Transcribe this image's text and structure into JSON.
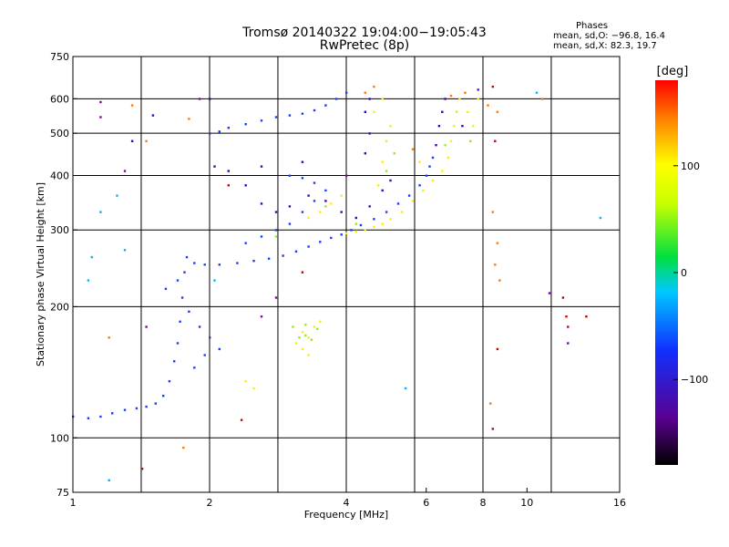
{
  "header": {
    "title": "Tromsø 20140322 19:04:00−19:05:43",
    "subtitle": "RwPretec (8p)"
  },
  "stats": {
    "heading": "Phases",
    "line_o": "mean, sd,O: −96.8, 16.4",
    "line_x": "mean, sd,X:  82.3, 19.7"
  },
  "colorbar": {
    "unit": "[deg]",
    "ticks": [
      "100",
      "0",
      "−100"
    ],
    "tick_values": [
      100,
      0,
      -100
    ],
    "range": [
      -180,
      180
    ]
  },
  "chart_data": {
    "type": "scatter",
    "xlabel": "Frequency [MHz]",
    "ylabel": "Stationary phase Virtual Height [km]",
    "xscale": "log",
    "yscale": "log",
    "xlim": [
      1,
      16
    ],
    "ylim": [
      75,
      750
    ],
    "x_ticks": [
      1,
      2,
      4,
      6,
      8,
      10,
      16
    ],
    "x_tick_labels": [
      "1",
      "2",
      "4",
      "6",
      "8",
      "10",
      "16"
    ],
    "x_grid": [
      1.414,
      2,
      2.828,
      4,
      5.657,
      8,
      11.31
    ],
    "y_ticks": [
      75,
      100,
      200,
      300,
      400,
      500,
      600,
      750
    ],
    "y_tick_labels": [
      "75",
      "100",
      "200",
      "300",
      "400",
      "500",
      "600",
      "750"
    ],
    "y_grid": [
      100,
      200,
      300,
      400,
      500,
      600
    ],
    "grid": true,
    "series": [
      {
        "color": "#1a3cff",
        "phase": -100,
        "points": [
          [
            1.0,
            112
          ],
          [
            1.08,
            111
          ],
          [
            1.15,
            112
          ],
          [
            1.22,
            114
          ],
          [
            1.3,
            116
          ],
          [
            1.38,
            117
          ],
          [
            1.45,
            118
          ],
          [
            1.52,
            120
          ],
          [
            1.58,
            125
          ],
          [
            1.63,
            135
          ],
          [
            1.67,
            150
          ],
          [
            1.7,
            165
          ],
          [
            1.72,
            185
          ],
          [
            1.74,
            210
          ],
          [
            1.76,
            240
          ],
          [
            1.78,
            260
          ],
          [
            1.85,
            252
          ],
          [
            1.95,
            250
          ],
          [
            2.1,
            250
          ],
          [
            2.3,
            252
          ],
          [
            2.5,
            255
          ],
          [
            2.7,
            258
          ],
          [
            2.9,
            262
          ],
          [
            3.1,
            268
          ],
          [
            3.3,
            275
          ],
          [
            3.5,
            282
          ],
          [
            3.7,
            288
          ],
          [
            3.9,
            293
          ],
          [
            4.1,
            300
          ],
          [
            4.3,
            308
          ],
          [
            4.6,
            318
          ],
          [
            4.9,
            330
          ],
          [
            5.2,
            345
          ],
          [
            5.5,
            360
          ],
          [
            5.8,
            380
          ],
          [
            6.0,
            400
          ],
          [
            6.1,
            420
          ],
          [
            6.2,
            440
          ],
          [
            2.0,
            500
          ],
          [
            2.1,
            505
          ],
          [
            2.2,
            515
          ],
          [
            2.4,
            525
          ],
          [
            2.6,
            535
          ],
          [
            2.8,
            545
          ],
          [
            3.0,
            550
          ],
          [
            3.2,
            555
          ],
          [
            3.4,
            565
          ],
          [
            3.6,
            580
          ],
          [
            3.8,
            600
          ],
          [
            4.0,
            620
          ],
          [
            2.4,
            280
          ],
          [
            2.6,
            290
          ],
          [
            2.8,
            300
          ],
          [
            3.0,
            310
          ],
          [
            3.2,
            330
          ],
          [
            3.4,
            350
          ],
          [
            3.6,
            370
          ],
          [
            3.0,
            400
          ],
          [
            3.2,
            395
          ],
          [
            3.4,
            385
          ],
          [
            1.6,
            220
          ],
          [
            1.7,
            230
          ],
          [
            1.8,
            195
          ],
          [
            1.9,
            180
          ],
          [
            2.0,
            170
          ],
          [
            2.1,
            160
          ],
          [
            1.85,
            145
          ],
          [
            1.95,
            155
          ]
        ]
      },
      {
        "color": "#3c00c8",
        "phase": -120,
        "points": [
          [
            2.05,
            420
          ],
          [
            2.2,
            410
          ],
          [
            2.4,
            380
          ],
          [
            2.6,
            345
          ],
          [
            2.8,
            330
          ],
          [
            3.0,
            340
          ],
          [
            3.3,
            360
          ],
          [
            3.6,
            350
          ],
          [
            3.9,
            330
          ],
          [
            4.2,
            320
          ],
          [
            4.5,
            340
          ],
          [
            4.8,
            370
          ],
          [
            5.0,
            390
          ],
          [
            4.4,
            450
          ],
          [
            4.5,
            500
          ],
          [
            4.4,
            560
          ],
          [
            4.5,
            600
          ],
          [
            6.3,
            470
          ],
          [
            6.4,
            520
          ],
          [
            6.5,
            560
          ],
          [
            6.6,
            600
          ],
          [
            7.0,
            560
          ],
          [
            7.2,
            520
          ],
          [
            2.0,
            600
          ],
          [
            1.5,
            550
          ],
          [
            1.35,
            480
          ],
          [
            2.6,
            420
          ],
          [
            3.2,
            430
          ]
        ]
      },
      {
        "color": "#ffee00",
        "phase": 100,
        "points": [
          [
            4.0,
            295
          ],
          [
            4.2,
            298
          ],
          [
            4.4,
            300
          ],
          [
            4.6,
            305
          ],
          [
            4.8,
            310
          ],
          [
            5.0,
            318
          ],
          [
            5.3,
            330
          ],
          [
            5.6,
            350
          ],
          [
            5.9,
            370
          ],
          [
            6.2,
            390
          ],
          [
            6.5,
            410
          ],
          [
            6.7,
            440
          ],
          [
            6.8,
            480
          ],
          [
            6.9,
            520
          ],
          [
            7.0,
            560
          ],
          [
            7.1,
            600
          ],
          [
            7.4,
            560
          ],
          [
            7.6,
            520
          ],
          [
            7.8,
            600
          ],
          [
            3.3,
            320
          ],
          [
            3.5,
            330
          ],
          [
            3.7,
            345
          ],
          [
            3.9,
            360
          ],
          [
            4.7,
            380
          ],
          [
            4.8,
            430
          ],
          [
            4.9,
            480
          ],
          [
            5.0,
            520
          ],
          [
            4.6,
            560
          ],
          [
            4.8,
            600
          ],
          [
            3.1,
            165
          ],
          [
            3.2,
            175
          ],
          [
            3.3,
            170
          ],
          [
            3.4,
            180
          ],
          [
            3.5,
            185
          ],
          [
            3.2,
            160
          ],
          [
            3.3,
            155
          ],
          [
            2.4,
            135
          ],
          [
            2.5,
            130
          ],
          [
            5.8,
            430
          ]
        ]
      },
      {
        "color": "#90ee20",
        "phase": 60,
        "points": [
          [
            3.15,
            170
          ],
          [
            3.25,
            172
          ],
          [
            3.35,
            168
          ],
          [
            3.45,
            178
          ],
          [
            3.25,
            182
          ],
          [
            4.9,
            410
          ],
          [
            5.1,
            450
          ],
          [
            6.6,
            470
          ],
          [
            7.5,
            480
          ],
          [
            3.6,
            340
          ],
          [
            4.2,
            310
          ],
          [
            2.8,
            290
          ],
          [
            3.05,
            180
          ]
        ]
      },
      {
        "color": "#ff7a00",
        "phase": 145,
        "points": [
          [
            4.4,
            620
          ],
          [
            4.6,
            640
          ],
          [
            5.6,
            460
          ],
          [
            6.8,
            610
          ],
          [
            7.3,
            620
          ],
          [
            8.2,
            580
          ],
          [
            8.6,
            560
          ],
          [
            8.4,
            330
          ],
          [
            8.6,
            280
          ],
          [
            8.5,
            250
          ],
          [
            8.7,
            230
          ],
          [
            1.45,
            480
          ],
          [
            1.75,
            95
          ],
          [
            1.35,
            580
          ],
          [
            10.8,
            600
          ],
          [
            1.2,
            170
          ],
          [
            1.8,
            540
          ],
          [
            8.3,
            120
          ]
        ]
      },
      {
        "color": "#00b4ff",
        "phase": -40,
        "points": [
          [
            1.3,
            270
          ],
          [
            1.25,
            360
          ],
          [
            1.15,
            330
          ],
          [
            1.1,
            260
          ],
          [
            14.5,
            320
          ],
          [
            10.5,
            620
          ],
          [
            2.05,
            230
          ],
          [
            5.4,
            130
          ],
          [
            1.08,
            230
          ],
          [
            1.2,
            80
          ]
        ]
      },
      {
        "color": "#c80000",
        "phase": 175,
        "points": [
          [
            8.4,
            640
          ],
          [
            8.5,
            480
          ],
          [
            2.35,
            110
          ],
          [
            1.42,
            85
          ],
          [
            8.4,
            105
          ],
          [
            12.3,
            180
          ],
          [
            12.2,
            190
          ],
          [
            12.0,
            210
          ],
          [
            13.5,
            190
          ],
          [
            8.6,
            160
          ],
          [
            3.2,
            240
          ],
          [
            2.2,
            380
          ]
        ]
      },
      {
        "color": "#8000c0",
        "phase": -150,
        "points": [
          [
            1.15,
            590
          ],
          [
            1.15,
            545
          ],
          [
            1.3,
            410
          ],
          [
            1.45,
            180
          ],
          [
            4.0,
            400
          ],
          [
            2.8,
            210
          ],
          [
            2.6,
            190
          ],
          [
            12.3,
            165
          ],
          [
            11.2,
            215
          ],
          [
            1.9,
            600
          ],
          [
            7.8,
            630
          ]
        ]
      }
    ]
  }
}
